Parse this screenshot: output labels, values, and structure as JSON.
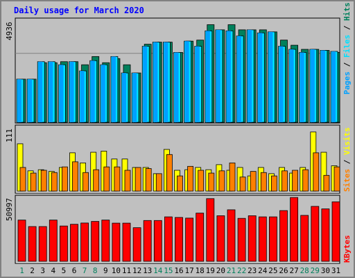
{
  "title": "Daily usage for March 2020",
  "colors": {
    "hits": "#00805c",
    "files": "#00e0ff",
    "pages": "#00a0ff",
    "visits": "#ffff00",
    "sites": "#ff8000",
    "kbytes": "#ff0000"
  },
  "chart_data": [
    {
      "type": "bar",
      "categories": [
        "1",
        "2",
        "3",
        "4",
        "5",
        "6",
        "7",
        "8",
        "9",
        "10",
        "11",
        "12",
        "13",
        "14",
        "15",
        "16",
        "17",
        "18",
        "19",
        "20",
        "21",
        "22",
        "23",
        "24",
        "25",
        "26",
        "27",
        "28",
        "29",
        "30",
        "31"
      ],
      "weekend_categories": [
        "1",
        "7",
        "8",
        "14",
        "15",
        "21",
        "22",
        "28",
        "29"
      ],
      "ymax": 4936,
      "ymax_label": "4936",
      "axis_legend": [
        "Pages",
        "Files",
        "Hits"
      ],
      "series": [
        {
          "name": "Hits",
          "values": [
            2100,
            2100,
            2900,
            2900,
            2950,
            2950,
            2800,
            3200,
            2900,
            3100,
            2800,
            2400,
            3800,
            3900,
            3900,
            3400,
            3950,
            4000,
            4750,
            4500,
            4750,
            4500,
            4500,
            4500,
            4400,
            4000,
            3750,
            3550,
            3550,
            3500,
            3400
          ]
        },
        {
          "name": "Files",
          "values": [
            2100,
            2100,
            2950,
            2950,
            2800,
            2950,
            2500,
            3000,
            2800,
            3200,
            2400,
            2400,
            3700,
            3900,
            3900,
            3400,
            3950,
            3700,
            4450,
            4500,
            4450,
            4200,
            4500,
            4350,
            4400,
            3700,
            3550,
            3400,
            3550,
            3500,
            3450
          ]
        },
        {
          "name": "Pages",
          "values": [
            2100,
            2100,
            2950,
            2950,
            2800,
            2950,
            2500,
            3000,
            2800,
            3200,
            2400,
            2400,
            3700,
            3900,
            3900,
            3400,
            3950,
            3700,
            4450,
            4500,
            4450,
            4200,
            4500,
            4350,
            4400,
            3700,
            3550,
            3400,
            3550,
            3500,
            3450
          ]
        }
      ]
    },
    {
      "type": "bar",
      "categories": [
        "1",
        "2",
        "3",
        "4",
        "5",
        "6",
        "7",
        "8",
        "9",
        "10",
        "11",
        "12",
        "13",
        "14",
        "15",
        "16",
        "17",
        "18",
        "19",
        "20",
        "21",
        "22",
        "23",
        "24",
        "25",
        "26",
        "27",
        "28",
        "29",
        "30",
        "31"
      ],
      "ymax": 111,
      "ymax_label": "111",
      "axis_legend": [
        "Sites",
        "Visits"
      ],
      "series": [
        {
          "name": "Visits",
          "values": [
            84,
            36,
            38,
            35,
            42,
            68,
            50,
            69,
            71,
            57,
            57,
            42,
            42,
            31,
            74,
            37,
            38,
            42,
            38,
            47,
            37,
            42,
            27,
            42,
            31,
            42,
            32,
            42,
            105,
            69,
            45
          ]
        },
        {
          "name": "Sites",
          "values": [
            42,
            32,
            37,
            33,
            43,
            52,
            33,
            38,
            43,
            43,
            37,
            42,
            40,
            31,
            65,
            27,
            44,
            37,
            32,
            36,
            50,
            25,
            35,
            33,
            27,
            36,
            37,
            38,
            68,
            28,
            43
          ]
        }
      ]
    },
    {
      "type": "bar",
      "categories": [
        "1",
        "2",
        "3",
        "4",
        "5",
        "6",
        "7",
        "8",
        "9",
        "10",
        "11",
        "12",
        "13",
        "14",
        "15",
        "16",
        "17",
        "18",
        "19",
        "20",
        "21",
        "22",
        "23",
        "24",
        "25",
        "26",
        "27",
        "28",
        "29",
        "30",
        "31"
      ],
      "ymax": 50997,
      "ymax_label": "50997",
      "axis_legend": [
        "KBytes"
      ],
      "series": [
        {
          "name": "KBytes",
          "values": [
            36200,
            30500,
            30500,
            36200,
            31000,
            32500,
            33600,
            35000,
            36200,
            33500,
            33500,
            29500,
            35800,
            35800,
            39000,
            38500,
            37900,
            42300,
            55000,
            40000,
            45200,
            37700,
            40000,
            39000,
            39000,
            44500,
            56000,
            40300,
            48200,
            46000,
            52200
          ]
        }
      ]
    }
  ]
}
